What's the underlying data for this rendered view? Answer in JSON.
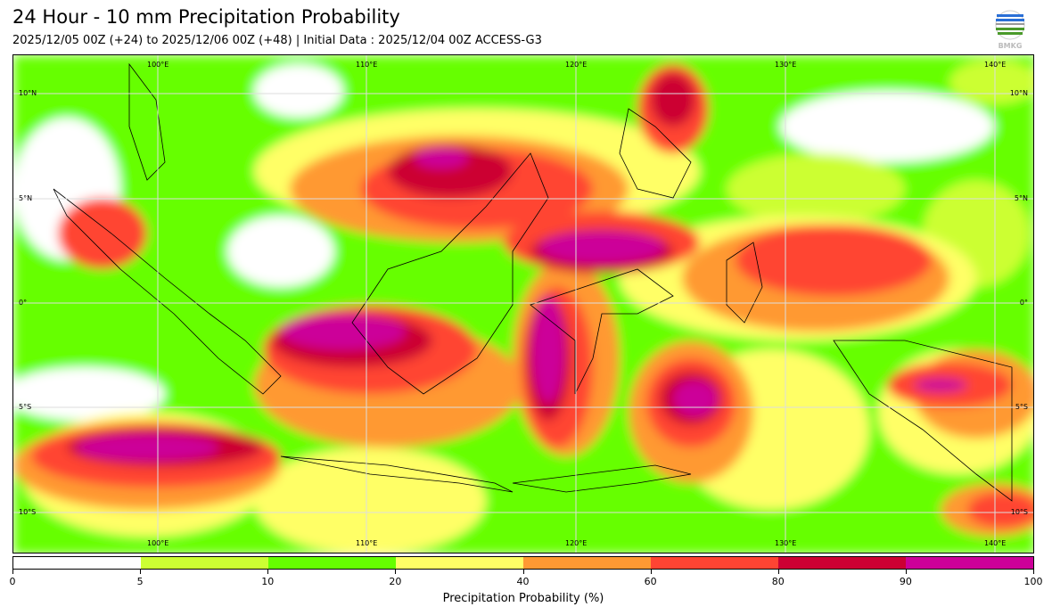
{
  "header": {
    "title": "24 Hour - 10 mm Precipitation Probability",
    "subtitle": "2025/12/05 00Z (+24) to 2025/12/06 00Z (+48) | Initial Data : 2025/12/04 00Z ACCESS-G3",
    "logo_text": "BMKG"
  },
  "map": {
    "lon_labels_top": [
      "100°E",
      "110°E",
      "120°E",
      "130°E",
      "140°E"
    ],
    "lon_labels_bottom": [
      "100°E",
      "110°E",
      "120°E",
      "130°E",
      "140°E"
    ],
    "lat_labels_left": [
      "10°N",
      "5°N",
      "0°",
      "5°S",
      "10°S"
    ],
    "lat_labels_right": [
      "10°N",
      "5°N",
      "0°",
      "5°S",
      "10°S"
    ]
  },
  "colorbar": {
    "ticks": [
      "0",
      "5",
      "10",
      "20",
      "40",
      "60",
      "80",
      "90",
      "100"
    ],
    "colors": [
      "#ffffff",
      "#ccff33",
      "#66ff00",
      "#ffff66",
      "#ff9933",
      "#ff4433",
      "#cc0033",
      "#cc0099"
    ],
    "label": "Precipitation Probability (%)"
  }
}
